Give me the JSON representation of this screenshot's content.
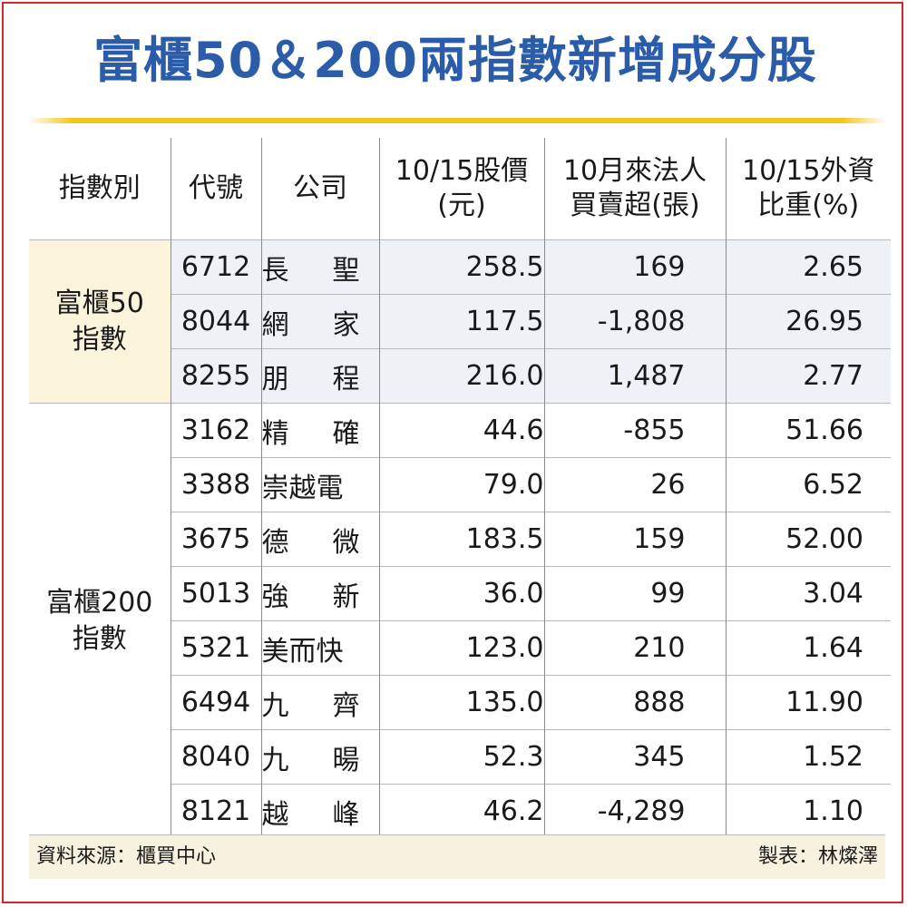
{
  "title": "富櫃50＆200兩指數新增成分股",
  "headers": {
    "index": "指數別",
    "code": "代號",
    "company": "公司",
    "price_l1": "10/15股價",
    "price_l2": "(元)",
    "inst_l1": "10月來法人",
    "inst_l2": "買賣超(張)",
    "foreign_l1": "10/15外資",
    "foreign_l2": "比重(%)"
  },
  "groups": [
    {
      "label_l1": "富櫃50",
      "label_l2": "指數",
      "rows": [
        {
          "code": "6712",
          "company": [
            "長",
            "聖"
          ],
          "price": "258.5",
          "net": "169",
          "foreign": "2.65"
        },
        {
          "code": "8044",
          "company": [
            "網",
            "家"
          ],
          "price": "117.5",
          "net": "-1,808",
          "foreign": "26.95"
        },
        {
          "code": "8255",
          "company": [
            "朋",
            "程"
          ],
          "price": "216.0",
          "net": "1,487",
          "foreign": "2.77"
        }
      ]
    },
    {
      "label_l1": "富櫃200",
      "label_l2": "指數",
      "rows": [
        {
          "code": "3162",
          "company": [
            "精",
            "確"
          ],
          "price": "44.6",
          "net": "-855",
          "foreign": "51.66"
        },
        {
          "code": "3388",
          "company": [
            "崇越電"
          ],
          "price": "79.0",
          "net": "26",
          "foreign": "6.52"
        },
        {
          "code": "3675",
          "company": [
            "德",
            "微"
          ],
          "price": "183.5",
          "net": "159",
          "foreign": "52.00"
        },
        {
          "code": "5013",
          "company": [
            "強",
            "新"
          ],
          "price": "36.0",
          "net": "99",
          "foreign": "3.04"
        },
        {
          "code": "5321",
          "company": [
            "美而快"
          ],
          "price": "123.0",
          "net": "210",
          "foreign": "1.64"
        },
        {
          "code": "6494",
          "company": [
            "九",
            "齊"
          ],
          "price": "135.0",
          "net": "888",
          "foreign": "11.90"
        },
        {
          "code": "8040",
          "company": [
            "九",
            "暘"
          ],
          "price": "52.3",
          "net": "345",
          "foreign": "1.52"
        },
        {
          "code": "8121",
          "company": [
            "越",
            "峰"
          ],
          "price": "46.2",
          "net": "-4,289",
          "foreign": "1.10"
        }
      ]
    }
  ],
  "footer": {
    "source": "資料來源：櫃買中心",
    "maker": "製表：林燦澤"
  },
  "colors": {
    "title": "#2a5caa",
    "border": "#d9252a",
    "rule": "#f3c719",
    "group50_bg": "#fbf3da",
    "shade_rows": "#eef2f7",
    "footer_bg": "#f7f2e0"
  }
}
